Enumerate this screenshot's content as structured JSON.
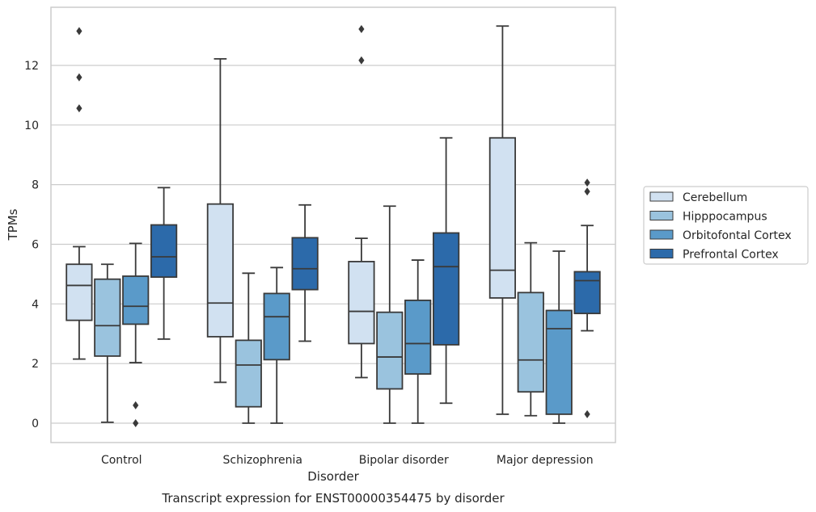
{
  "chart_data": {
    "type": "box",
    "title": "Transcript expression for ENST00000354475 by disorder",
    "xlabel": "Disorder",
    "ylabel": "TPMs",
    "categories": [
      "Control",
      "Schizophrenia",
      "Bipolar disorder",
      "Major depression"
    ],
    "ylim": [
      -0.65,
      13.95
    ],
    "yticks": [
      "0",
      "2",
      "4",
      "6",
      "8",
      "10",
      "12"
    ],
    "grid": true,
    "legend_position": "right",
    "series": [
      {
        "name": "Cerebellum",
        "color": "#d1e1f1",
        "boxes": [
          {
            "whislo": 2.15,
            "q1": 3.45,
            "med": 4.62,
            "q3": 5.33,
            "whishi": 5.92,
            "fliers": [
              10.56,
              11.6,
              13.15
            ]
          },
          {
            "whislo": 1.37,
            "q1": 2.9,
            "med": 4.03,
            "q3": 7.35,
            "whishi": 12.22,
            "fliers": []
          },
          {
            "whislo": 1.53,
            "q1": 2.67,
            "med": 3.75,
            "q3": 5.42,
            "whishi": 6.2,
            "fliers": [
              12.17,
              13.22
            ]
          },
          {
            "whislo": 0.3,
            "q1": 4.2,
            "med": 5.13,
            "q3": 9.57,
            "whishi": 13.32,
            "fliers": []
          }
        ]
      },
      {
        "name": "Hipppocampus",
        "color": "#9ac3de",
        "boxes": [
          {
            "whislo": 0.03,
            "q1": 2.25,
            "med": 3.27,
            "q3": 4.83,
            "whishi": 5.33,
            "fliers": []
          },
          {
            "whislo": 0.0,
            "q1": 0.55,
            "med": 1.95,
            "q3": 2.78,
            "whishi": 5.03,
            "fliers": []
          },
          {
            "whislo": 0.0,
            "q1": 1.15,
            "med": 2.22,
            "q3": 3.72,
            "whishi": 7.28,
            "fliers": []
          },
          {
            "whislo": 0.25,
            "q1": 1.05,
            "med": 2.12,
            "q3": 4.38,
            "whishi": 6.05,
            "fliers": []
          }
        ]
      },
      {
        "name": "Orbitofontal Cortex",
        "color": "#5a9ac9",
        "boxes": [
          {
            "whislo": 2.03,
            "q1": 3.32,
            "med": 3.92,
            "q3": 4.93,
            "whishi": 6.03,
            "fliers": [
              0.0,
              0.6
            ]
          },
          {
            "whislo": 0.0,
            "q1": 2.13,
            "med": 3.57,
            "q3": 4.35,
            "whishi": 5.22,
            "fliers": []
          },
          {
            "whislo": 0.0,
            "q1": 1.65,
            "med": 2.67,
            "q3": 4.12,
            "whishi": 5.47,
            "fliers": []
          },
          {
            "whislo": 0.0,
            "q1": 0.3,
            "med": 3.17,
            "q3": 3.78,
            "whishi": 5.77,
            "fliers": []
          }
        ]
      },
      {
        "name": "Prefrontal Cortex",
        "color": "#2c6aaa",
        "boxes": [
          {
            "whislo": 2.82,
            "q1": 4.9,
            "med": 5.58,
            "q3": 6.65,
            "whishi": 7.9,
            "fliers": []
          },
          {
            "whislo": 2.75,
            "q1": 4.48,
            "med": 5.18,
            "q3": 6.22,
            "whishi": 7.32,
            "fliers": []
          },
          {
            "whislo": 0.67,
            "q1": 2.63,
            "med": 5.25,
            "q3": 6.38,
            "whishi": 9.57,
            "fliers": []
          },
          {
            "whislo": 3.1,
            "q1": 3.68,
            "med": 4.78,
            "q3": 5.08,
            "whishi": 6.63,
            "fliers": [
              0.3,
              7.77,
              8.07
            ]
          }
        ]
      }
    ]
  }
}
